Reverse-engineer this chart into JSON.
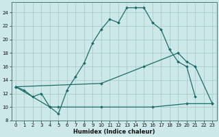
{
  "xlabel": "Humidex (Indice chaleur)",
  "bg_color": "#cce8e8",
  "grid_color": "#aacccc",
  "line_color": "#1a6b6b",
  "xlim": [
    -0.5,
    23.5
  ],
  "ylim": [
    8,
    25.5
  ],
  "xticks": [
    0,
    1,
    2,
    3,
    4,
    5,
    6,
    7,
    8,
    9,
    10,
    11,
    12,
    13,
    14,
    15,
    16,
    17,
    18,
    19,
    20,
    21,
    22,
    23
  ],
  "yticks": [
    8,
    10,
    12,
    14,
    16,
    18,
    20,
    22,
    24
  ],
  "line1_x": [
    0,
    1,
    2,
    3,
    4,
    5,
    6,
    7,
    8,
    9,
    10,
    11,
    12,
    13,
    14,
    15,
    16,
    17,
    18,
    19,
    20,
    21
  ],
  "line1_y": [
    13,
    12.5,
    11.5,
    12,
    10,
    9,
    12.5,
    14.5,
    16.5,
    19.5,
    21.5,
    23,
    22.5,
    24.7,
    24.7,
    24.7,
    22.5,
    21.5,
    18.5,
    16.7,
    16,
    11.5
  ],
  "line2_x": [
    0,
    4,
    5,
    10,
    16,
    20,
    23
  ],
  "line2_y": [
    13,
    10,
    10,
    10,
    10,
    10.5,
    10.5
  ],
  "line3_x": [
    0,
    10,
    15,
    19,
    20,
    21,
    23
  ],
  "line3_y": [
    13,
    13.5,
    16,
    18,
    16.7,
    16,
    10.5
  ]
}
